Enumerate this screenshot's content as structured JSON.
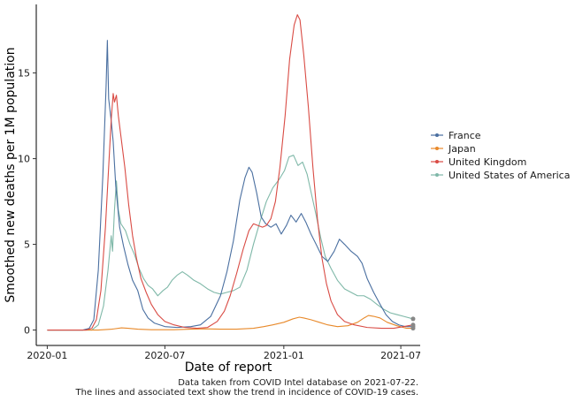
{
  "chart_data": {
    "type": "line",
    "title": "",
    "xlabel": "Date of report",
    "ylabel": "Smoothed new deaths per 1M population",
    "x_ticks": [
      "2020-01",
      "2020-07",
      "2021-01",
      "2021-07"
    ],
    "y_ticks": [
      "0",
      "5",
      "10",
      "15"
    ],
    "ylim": [
      -0.9,
      19
    ],
    "xlim": [
      "2019-12-15",
      "2021-07-31"
    ],
    "grid": false,
    "legend_position": "right",
    "caption": [
      "Data taken from COVID Intel database on 2021-07-22.",
      "The lines and associated text show the trend in incidence of COVID-19 cases."
    ],
    "series": [
      {
        "name": "France",
        "color": "#4a6fa0",
        "points": [
          [
            "2020-01-01",
            0
          ],
          [
            "2020-02-25",
            0
          ],
          [
            "2020-03-06",
            0.1
          ],
          [
            "2020-03-13",
            0.6
          ],
          [
            "2020-03-20",
            3.5
          ],
          [
            "2020-03-27",
            9.0
          ],
          [
            "2020-04-01",
            14.2
          ],
          [
            "2020-04-03",
            16.9
          ],
          [
            "2020-04-05",
            13.5
          ],
          [
            "2020-04-09",
            12.2
          ],
          [
            "2020-04-12",
            11.0
          ],
          [
            "2020-04-16",
            8.4
          ],
          [
            "2020-04-22",
            6.0
          ],
          [
            "2020-04-28",
            4.9
          ],
          [
            "2020-05-05",
            3.8
          ],
          [
            "2020-05-12",
            2.9
          ],
          [
            "2020-05-20",
            2.3
          ],
          [
            "2020-05-28",
            1.2
          ],
          [
            "2020-06-05",
            0.7
          ],
          [
            "2020-06-15",
            0.4
          ],
          [
            "2020-07-01",
            0.2
          ],
          [
            "2020-07-20",
            0.15
          ],
          [
            "2020-08-10",
            0.2
          ],
          [
            "2020-08-25",
            0.3
          ],
          [
            "2020-09-10",
            0.8
          ],
          [
            "2020-09-25",
            2.0
          ],
          [
            "2020-10-05",
            3.4
          ],
          [
            "2020-10-15",
            5.2
          ],
          [
            "2020-10-25",
            7.6
          ],
          [
            "2020-11-02",
            8.9
          ],
          [
            "2020-11-08",
            9.5
          ],
          [
            "2020-11-13",
            9.2
          ],
          [
            "2020-11-20",
            8.0
          ],
          [
            "2020-11-27",
            6.6
          ],
          [
            "2020-12-04",
            6.2
          ],
          [
            "2020-12-12",
            6.0
          ],
          [
            "2020-12-20",
            6.2
          ],
          [
            "2020-12-28",
            5.6
          ],
          [
            "2021-01-05",
            6.1
          ],
          [
            "2021-01-12",
            6.7
          ],
          [
            "2021-01-20",
            6.3
          ],
          [
            "2021-01-28",
            6.8
          ],
          [
            "2021-02-04",
            6.3
          ],
          [
            "2021-02-12",
            5.6
          ],
          [
            "2021-02-20",
            5.0
          ],
          [
            "2021-03-01",
            4.3
          ],
          [
            "2021-03-10",
            4.0
          ],
          [
            "2021-03-20",
            4.6
          ],
          [
            "2021-03-28",
            5.3
          ],
          [
            "2021-04-05",
            5.0
          ],
          [
            "2021-04-15",
            4.6
          ],
          [
            "2021-04-25",
            4.3
          ],
          [
            "2021-05-02",
            3.9
          ],
          [
            "2021-05-10",
            3.0
          ],
          [
            "2021-05-20",
            2.2
          ],
          [
            "2021-05-30",
            1.5
          ],
          [
            "2021-06-08",
            0.9
          ],
          [
            "2021-06-18",
            0.5
          ],
          [
            "2021-06-28",
            0.3
          ],
          [
            "2021-07-08",
            0.2
          ],
          [
            "2021-07-20",
            0.2
          ]
        ]
      },
      {
        "name": "Japan",
        "color": "#e8892a",
        "points": [
          [
            "2020-01-01",
            0
          ],
          [
            "2020-03-20",
            0
          ],
          [
            "2020-04-10",
            0.05
          ],
          [
            "2020-04-25",
            0.13
          ],
          [
            "2020-05-05",
            0.1
          ],
          [
            "2020-05-20",
            0.05
          ],
          [
            "2020-06-10",
            0.02
          ],
          [
            "2020-07-15",
            0.02
          ],
          [
            "2020-08-10",
            0.05
          ],
          [
            "2020-09-01",
            0.07
          ],
          [
            "2020-09-25",
            0.05
          ],
          [
            "2020-10-20",
            0.05
          ],
          [
            "2020-11-15",
            0.1
          ],
          [
            "2020-12-01",
            0.2
          ],
          [
            "2020-12-15",
            0.3
          ],
          [
            "2021-01-01",
            0.45
          ],
          [
            "2021-01-15",
            0.65
          ],
          [
            "2021-01-25",
            0.75
          ],
          [
            "2021-02-01",
            0.7
          ],
          [
            "2021-02-12",
            0.6
          ],
          [
            "2021-02-25",
            0.45
          ],
          [
            "2021-03-10",
            0.3
          ],
          [
            "2021-03-25",
            0.2
          ],
          [
            "2021-04-10",
            0.25
          ],
          [
            "2021-04-25",
            0.45
          ],
          [
            "2021-05-05",
            0.7
          ],
          [
            "2021-05-12",
            0.85
          ],
          [
            "2021-05-20",
            0.8
          ],
          [
            "2021-05-30",
            0.7
          ],
          [
            "2021-06-10",
            0.45
          ],
          [
            "2021-06-25",
            0.25
          ],
          [
            "2021-07-10",
            0.1
          ],
          [
            "2021-07-20",
            0.1
          ]
        ]
      },
      {
        "name": "United Kingdom",
        "color": "#d94b44",
        "points": [
          [
            "2020-01-01",
            0
          ],
          [
            "2020-03-01",
            0
          ],
          [
            "2020-03-10",
            0.1
          ],
          [
            "2020-03-17",
            0.6
          ],
          [
            "2020-03-24",
            2.3
          ],
          [
            "2020-03-31",
            6.0
          ],
          [
            "2020-04-05",
            9.5
          ],
          [
            "2020-04-09",
            12.3
          ],
          [
            "2020-04-12",
            13.8
          ],
          [
            "2020-04-14",
            13.3
          ],
          [
            "2020-04-17",
            13.7
          ],
          [
            "2020-04-20",
            12.5
          ],
          [
            "2020-04-25",
            11.0
          ],
          [
            "2020-04-30",
            9.5
          ],
          [
            "2020-05-06",
            7.3
          ],
          [
            "2020-05-12",
            5.5
          ],
          [
            "2020-05-18",
            4.2
          ],
          [
            "2020-05-25",
            3.0
          ],
          [
            "2020-06-02",
            2.2
          ],
          [
            "2020-06-10",
            1.5
          ],
          [
            "2020-06-20",
            0.9
          ],
          [
            "2020-07-01",
            0.5
          ],
          [
            "2020-07-15",
            0.3
          ],
          [
            "2020-08-01",
            0.15
          ],
          [
            "2020-08-20",
            0.1
          ],
          [
            "2020-09-05",
            0.15
          ],
          [
            "2020-09-20",
            0.5
          ],
          [
            "2020-10-01",
            1.1
          ],
          [
            "2020-10-10",
            2.0
          ],
          [
            "2020-10-20",
            3.3
          ],
          [
            "2020-10-30",
            4.7
          ],
          [
            "2020-11-08",
            5.8
          ],
          [
            "2020-11-15",
            6.2
          ],
          [
            "2020-11-22",
            6.1
          ],
          [
            "2020-11-29",
            6.0
          ],
          [
            "2020-12-05",
            6.1
          ],
          [
            "2020-12-12",
            6.5
          ],
          [
            "2020-12-19",
            7.5
          ],
          [
            "2020-12-26",
            9.5
          ],
          [
            "2021-01-03",
            12.5
          ],
          [
            "2021-01-10",
            15.8
          ],
          [
            "2021-01-17",
            17.8
          ],
          [
            "2021-01-22",
            18.4
          ],
          [
            "2021-01-26",
            18.1
          ],
          [
            "2021-02-01",
            16.0
          ],
          [
            "2021-02-08",
            13.0
          ],
          [
            "2021-02-15",
            9.5
          ],
          [
            "2021-02-22",
            6.5
          ],
          [
            "2021-03-01",
            4.2
          ],
          [
            "2021-03-08",
            2.7
          ],
          [
            "2021-03-15",
            1.7
          ],
          [
            "2021-03-25",
            0.9
          ],
          [
            "2021-04-05",
            0.5
          ],
          [
            "2021-04-20",
            0.3
          ],
          [
            "2021-05-10",
            0.15
          ],
          [
            "2021-06-01",
            0.1
          ],
          [
            "2021-06-20",
            0.1
          ],
          [
            "2021-07-05",
            0.2
          ],
          [
            "2021-07-20",
            0.3
          ]
        ]
      },
      {
        "name": "United States of America",
        "color": "#7fb8a8",
        "points": [
          [
            "2020-01-01",
            0
          ],
          [
            "2020-03-10",
            0
          ],
          [
            "2020-03-20",
            0.3
          ],
          [
            "2020-03-28",
            1.4
          ],
          [
            "2020-04-04",
            3.5
          ],
          [
            "2020-04-09",
            5.5
          ],
          [
            "2020-04-11",
            4.6
          ],
          [
            "2020-04-14",
            7.0
          ],
          [
            "2020-04-17",
            8.7
          ],
          [
            "2020-04-20",
            7.0
          ],
          [
            "2020-04-24",
            6.2
          ],
          [
            "2020-05-01",
            5.8
          ],
          [
            "2020-05-08",
            5.0
          ],
          [
            "2020-05-15",
            4.4
          ],
          [
            "2020-05-22",
            3.6
          ],
          [
            "2020-05-29",
            3.0
          ],
          [
            "2020-06-05",
            2.6
          ],
          [
            "2020-06-12",
            2.4
          ],
          [
            "2020-06-20",
            2.0
          ],
          [
            "2020-06-28",
            2.3
          ],
          [
            "2020-07-05",
            2.5
          ],
          [
            "2020-07-12",
            2.9
          ],
          [
            "2020-07-20",
            3.2
          ],
          [
            "2020-07-28",
            3.4
          ],
          [
            "2020-08-05",
            3.2
          ],
          [
            "2020-08-15",
            2.9
          ],
          [
            "2020-08-25",
            2.7
          ],
          [
            "2020-09-05",
            2.4
          ],
          [
            "2020-09-15",
            2.2
          ],
          [
            "2020-09-25",
            2.1
          ],
          [
            "2020-10-05",
            2.2
          ],
          [
            "2020-10-15",
            2.3
          ],
          [
            "2020-10-25",
            2.5
          ],
          [
            "2020-11-05",
            3.5
          ],
          [
            "2020-11-15",
            5.0
          ],
          [
            "2020-11-25",
            6.3
          ],
          [
            "2020-12-05",
            7.5
          ],
          [
            "2020-12-15",
            8.3
          ],
          [
            "2020-12-25",
            8.8
          ],
          [
            "2021-01-02",
            9.3
          ],
          [
            "2021-01-09",
            10.1
          ],
          [
            "2021-01-16",
            10.2
          ],
          [
            "2021-01-23",
            9.6
          ],
          [
            "2021-01-30",
            9.8
          ],
          [
            "2021-02-06",
            9.1
          ],
          [
            "2021-02-13",
            7.9
          ],
          [
            "2021-02-20",
            6.7
          ],
          [
            "2021-02-27",
            5.4
          ],
          [
            "2021-03-06",
            4.3
          ],
          [
            "2021-03-15",
            3.6
          ],
          [
            "2021-03-25",
            2.9
          ],
          [
            "2021-04-05",
            2.4
          ],
          [
            "2021-04-15",
            2.2
          ],
          [
            "2021-04-25",
            2.0
          ],
          [
            "2021-05-05",
            2.0
          ],
          [
            "2021-05-15",
            1.8
          ],
          [
            "2021-05-25",
            1.5
          ],
          [
            "2021-06-05",
            1.2
          ],
          [
            "2021-06-15",
            1.0
          ],
          [
            "2021-06-25",
            0.9
          ],
          [
            "2021-07-05",
            0.8
          ],
          [
            "2021-07-20",
            0.65
          ]
        ]
      }
    ]
  }
}
